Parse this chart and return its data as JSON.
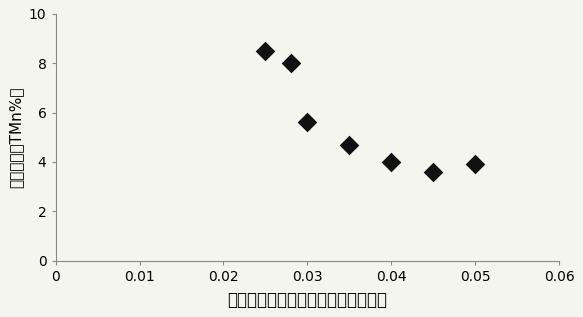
{
  "x": [
    0.025,
    0.028,
    0.03,
    0.035,
    0.04,
    0.045,
    0.05
  ],
  "y": [
    8.5,
    8.0,
    5.6,
    4.7,
    4.0,
    3.6,
    3.9
  ],
  "xlabel": "硫铁矿加入量（与焙烧锰粉重量比）",
  "ylabel": "锰泥全锰（TMn%）",
  "xlim": [
    0,
    0.06
  ],
  "ylim": [
    0,
    10
  ],
  "xticks": [
    0,
    0.01,
    0.02,
    0.03,
    0.04,
    0.05,
    0.06
  ],
  "yticks": [
    0,
    2,
    4,
    6,
    8,
    10
  ],
  "marker": "D",
  "marker_color": "#111111",
  "marker_size": 5,
  "background_color": "#f5f5f0",
  "xlabel_fontsize": 12,
  "ylabel_fontsize": 11,
  "tick_fontsize": 10
}
